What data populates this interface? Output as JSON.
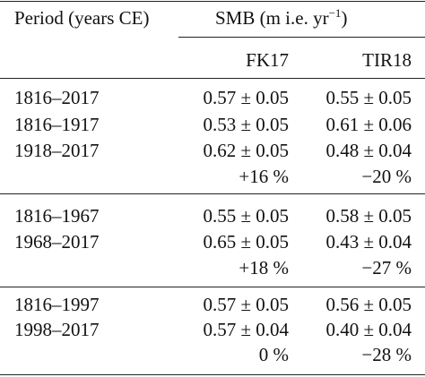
{
  "header": {
    "period_label": "Period (years CE)",
    "smb_label": "SMB (m i.e. yr",
    "smb_exponent": "−1",
    "smb_close": ")",
    "col_fk": "FK17",
    "col_tir": "TIR18"
  },
  "groups": [
    {
      "rows": [
        {
          "period": "1816–2017",
          "fk": "0.57 ± 0.05",
          "tir": "0.55 ± 0.05"
        },
        {
          "period": "1816–1917",
          "fk": "0.53 ± 0.05",
          "tir": "0.61 ± 0.06"
        },
        {
          "period": "1918–2017",
          "fk": "0.62 ± 0.05",
          "tir": "0.48 ± 0.04"
        },
        {
          "period": "",
          "fk": "+16 %",
          "tir": "−20 %"
        }
      ]
    },
    {
      "rows": [
        {
          "period": "1816–1967",
          "fk": "0.55 ± 0.05",
          "tir": "0.58 ± 0.05"
        },
        {
          "period": "1968–2017",
          "fk": "0.65 ± 0.05",
          "tir": "0.43 ± 0.04"
        },
        {
          "period": "",
          "fk": "+18 %",
          "tir": "−27 %"
        }
      ]
    },
    {
      "rows": [
        {
          "period": "1816–1997",
          "fk": "0.57 ± 0.05",
          "tir": "0.56 ± 0.05"
        },
        {
          "period": "1998–2017",
          "fk": "0.57 ± 0.04",
          "tir": "0.40 ± 0.04"
        },
        {
          "period": "",
          "fk": "0 %",
          "tir": "−28 %"
        }
      ]
    }
  ]
}
